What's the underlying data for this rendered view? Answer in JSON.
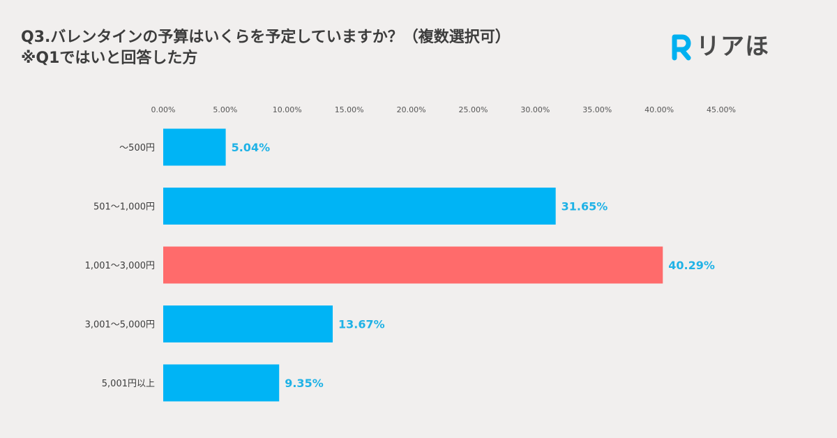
{
  "header": {
    "title": "Q3.バレンタインの予算はいくらを予定していますか？（複数選択可）",
    "subtitle": "※Q1ではいと回答した方"
  },
  "logo": {
    "icon": "r-letter-icon",
    "text": "リアほ",
    "color": "#00b0f0"
  },
  "chart_data": {
    "type": "bar",
    "orientation": "horizontal",
    "title": "Q3.バレンタインの予算はいくらを予定していますか？（複数選択可）",
    "subtitle": "※Q1ではいと回答した方",
    "categories": [
      "～500円",
      "501～1,000円",
      "1,001～3,000円",
      "3,001～5,000円",
      "5,001円以上"
    ],
    "values": [
      5.04,
      31.65,
      40.29,
      13.67,
      9.35
    ],
    "data_labels": [
      "5.04%",
      "31.65%",
      "40.29%",
      "13.67%",
      "9.35%"
    ],
    "xticks": [
      "0.00%",
      "5.00%",
      "10.00%",
      "15.00%",
      "20.00%",
      "25.00%",
      "30.00%",
      "35.00%",
      "40.00%",
      "45.00%"
    ],
    "xlim": [
      0,
      45
    ],
    "xaxis_position": "top",
    "grid": false,
    "highlight_index": 2,
    "colors": {
      "bar": "#00b4f5",
      "highlight": "#ff6b6b",
      "label": "#1fb2e6"
    }
  }
}
